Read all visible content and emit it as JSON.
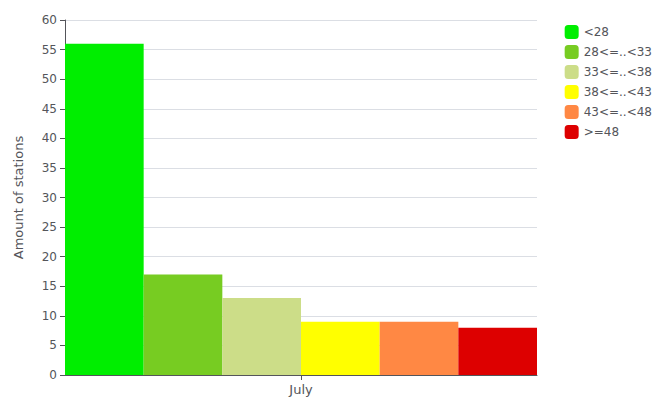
{
  "chart_data": {
    "type": "bar",
    "categories": [
      "July"
    ],
    "series": [
      {
        "name": "<28",
        "color": "#00ee00",
        "values": [
          56
        ]
      },
      {
        "name": "28<=..<33",
        "color": "#77cc22",
        "values": [
          17
        ]
      },
      {
        "name": "33<=..<38",
        "color": "#ccdd88",
        "values": [
          13
        ]
      },
      {
        "name": "38<=..<43",
        "color": "#ffff00",
        "values": [
          9
        ]
      },
      {
        "name": "43<=..<48",
        "color": "#ff8844",
        "values": [
          9
        ]
      },
      {
        "name": ">=48",
        "color": "#dd0000",
        "values": [
          8
        ]
      }
    ],
    "ylabel": "Amount of stations",
    "ylim": [
      0,
      60
    ],
    "yticks": [
      0,
      5,
      10,
      15,
      20,
      25,
      30,
      35,
      40,
      45,
      50,
      55,
      60
    ],
    "grid": true,
    "legend": "upper right"
  }
}
